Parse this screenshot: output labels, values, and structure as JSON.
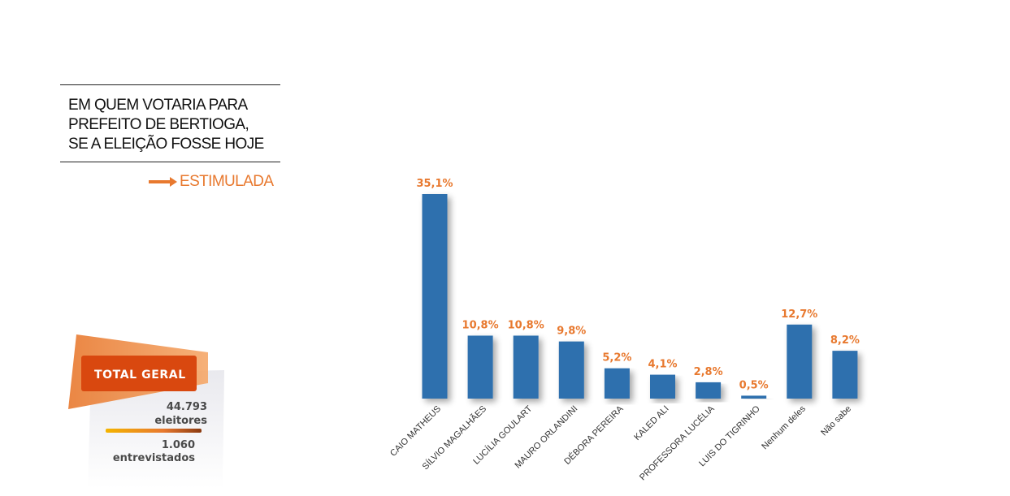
{
  "header": {
    "title_lines": [
      "EM QUEM VOTARIA PARA",
      "PREFEITO DE BERTIOGA,",
      "SE A ELEIÇÃO FOSSE HOJE"
    ],
    "subtitle": "ESTIMULADA"
  },
  "summary": {
    "label": "TOTAL GERAL",
    "voters_value": "44.793",
    "voters_label": "eleitores",
    "interviews_value": "1.060",
    "interviews_label": "entrevistados"
  },
  "colors": {
    "bar": "#2e6fae",
    "accent": "#e8792f"
  },
  "chart_data": {
    "type": "bar",
    "categories": [
      "CAIO MATHEUS",
      "SÍLVIO MAGALHÃES",
      "LUCÍLIA GOULART",
      "MAURO ORLANDINI",
      "DÉBORA PEREIRA",
      "KALED ALI",
      "PROFESSORA LUCÉLIA",
      "LUIS DO TIGRINHO",
      "Nenhum deles",
      "Não sabe"
    ],
    "values": [
      35.1,
      10.8,
      10.8,
      9.8,
      5.2,
      4.1,
      2.8,
      0.5,
      12.7,
      8.2
    ],
    "value_labels": [
      "35,1%",
      "10,8%",
      "10,8%",
      "9,8%",
      "5,2%",
      "4,1%",
      "2,8%",
      "0,5%",
      "12,7%",
      "8,2%"
    ],
    "ylim": [
      0,
      35.1
    ],
    "grid": false,
    "legend": "none"
  }
}
